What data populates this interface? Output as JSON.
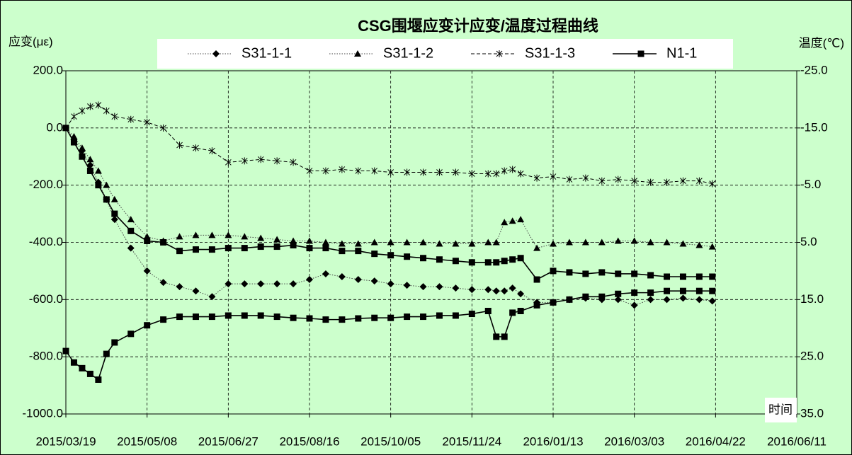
{
  "chart_data": {
    "type": "line",
    "title": "CSG围堰应变计应变/温度过程曲线",
    "y_label": "应变(με)",
    "y2_label": "温度(℃)",
    "x_label": "时间",
    "background": "#ccffcc",
    "grid": true,
    "xlim": [
      "2015/03/19",
      "2016/06/11"
    ],
    "xticks": [
      "2015/03/19",
      "2015/05/08",
      "2015/06/27",
      "2015/08/16",
      "2015/10/05",
      "2015/11/24",
      "2016/01/13",
      "2016/03/03",
      "2016/04/22",
      "2016/06/11"
    ],
    "ylim": [
      -1000,
      200
    ],
    "yticks": [
      {
        "value": -1000,
        "label": "-1000.0"
      },
      {
        "value": -800,
        "label": "-800.0"
      },
      {
        "value": -600,
        "label": "-600.0"
      },
      {
        "value": -400,
        "label": "-400.0"
      },
      {
        "value": -200,
        "label": "-200.0"
      },
      {
        "value": 0,
        "label": "0.0"
      },
      {
        "value": 200,
        "label": "200.0"
      }
    ],
    "y2lim": [
      35,
      -25
    ],
    "y2ticks": [
      {
        "value": 35,
        "label": "35.0"
      },
      {
        "value": 25,
        "label": "25.0"
      },
      {
        "value": 15,
        "label": "15.0"
      },
      {
        "value": 5,
        "label": "5.0"
      },
      {
        "value": -5,
        "label": "-5.0"
      },
      {
        "value": -15,
        "label": "-15.0"
      },
      {
        "value": -25,
        "label": "-25.0"
      }
    ],
    "x": [
      "2015/03/19",
      "2015/03/24",
      "2015/03/29",
      "2015/04/03",
      "2015/04/08",
      "2015/04/13",
      "2015/04/18",
      "2015/04/28",
      "2015/05/08",
      "2015/05/18",
      "2015/05/28",
      "2015/06/07",
      "2015/06/17",
      "2015/06/27",
      "2015/07/07",
      "2015/07/17",
      "2015/07/27",
      "2015/08/06",
      "2015/08/16",
      "2015/08/26",
      "2015/09/05",
      "2015/09/15",
      "2015/09/25",
      "2015/10/05",
      "2015/10/15",
      "2015/10/25",
      "2015/11/04",
      "2015/11/14",
      "2015/11/24",
      "2015/12/04",
      "2015/12/09",
      "2015/12/14",
      "2015/12/19",
      "2015/12/24",
      "2016/01/03",
      "2016/01/13",
      "2016/01/23",
      "2016/02/02",
      "2016/02/12",
      "2016/02/22",
      "2016/03/03",
      "2016/03/13",
      "2016/03/23",
      "2016/04/02",
      "2016/04/12",
      "2016/04/20"
    ],
    "series": [
      {
        "name": "S31-1-1",
        "color": "#000000",
        "marker": "diamond",
        "line_style": "dotted",
        "values": [
          0,
          -40,
          -80,
          -130,
          -190,
          -250,
          -320,
          -420,
          -500,
          -540,
          -555,
          -570,
          -590,
          -545,
          -545,
          -545,
          -545,
          -545,
          -530,
          -510,
          -520,
          -530,
          -535,
          -545,
          -550,
          -555,
          -555,
          -560,
          -565,
          -565,
          -570,
          -570,
          -560,
          -580,
          -610,
          -610,
          -600,
          -595,
          -600,
          -600,
          -620,
          -600,
          -600,
          -595,
          -600,
          -605
        ]
      },
      {
        "name": "S31-1-2",
        "color": "#000000",
        "marker": "triangle",
        "line_style": "dotted",
        "values": [
          0,
          -30,
          -70,
          -110,
          -150,
          -200,
          -250,
          -320,
          -380,
          -395,
          -380,
          -375,
          -375,
          -375,
          -380,
          -385,
          -390,
          -395,
          -395,
          -400,
          -405,
          -405,
          -400,
          -400,
          -400,
          -400,
          -405,
          -405,
          -405,
          -400,
          -400,
          -330,
          -325,
          -320,
          -420,
          -405,
          -400,
          -400,
          -400,
          -395,
          -395,
          -400,
          -400,
          -405,
          -410,
          -415
        ]
      },
      {
        "name": "S31-1-3",
        "color": "#000000",
        "marker": "asterisk",
        "line_style": "dashed",
        "values": [
          0,
          40,
          60,
          75,
          80,
          60,
          40,
          30,
          20,
          0,
          -60,
          -70,
          -80,
          -120,
          -115,
          -110,
          -115,
          -120,
          -150,
          -150,
          -145,
          -150,
          -150,
          -155,
          -155,
          -155,
          -155,
          -155,
          -160,
          -160,
          -160,
          -150,
          -145,
          -160,
          -175,
          -170,
          -180,
          -175,
          -185,
          -180,
          -185,
          -190,
          -190,
          -185,
          -185,
          -195
        ]
      },
      {
        "name": "N1-1",
        "color": "#000000",
        "marker": "square",
        "line_style": "solid",
        "values": [
          0,
          -50,
          -100,
          -150,
          -200,
          -250,
          -300,
          -360,
          -395,
          -400,
          -430,
          -425,
          -425,
          -420,
          -420,
          -415,
          -415,
          -410,
          -420,
          -420,
          -430,
          -430,
          -440,
          -445,
          -450,
          -455,
          -460,
          -465,
          -470,
          -470,
          -470,
          -465,
          -460,
          -455,
          -530,
          -500,
          -505,
          -510,
          -505,
          -510,
          -510,
          -515,
          -520,
          -520,
          -520,
          -520
        ]
      },
      {
        "color": "#000000",
        "marker": "square",
        "line_style": "solid",
        "axis": "y2",
        "values": [
          24,
          26,
          27,
          28,
          29,
          24.5,
          22.5,
          21,
          19.5,
          18.5,
          18,
          18,
          18,
          17.8,
          17.8,
          17.8,
          18,
          18.2,
          18.3,
          18.5,
          18.5,
          18.3,
          18.2,
          18.2,
          18,
          18,
          17.8,
          17.8,
          17.5,
          17,
          21.5,
          21.5,
          17.3,
          17,
          16,
          15.5,
          15,
          14.5,
          14.5,
          14,
          13.8,
          13.8,
          13.5,
          13.5,
          13.5,
          13.5
        ]
      }
    ]
  }
}
